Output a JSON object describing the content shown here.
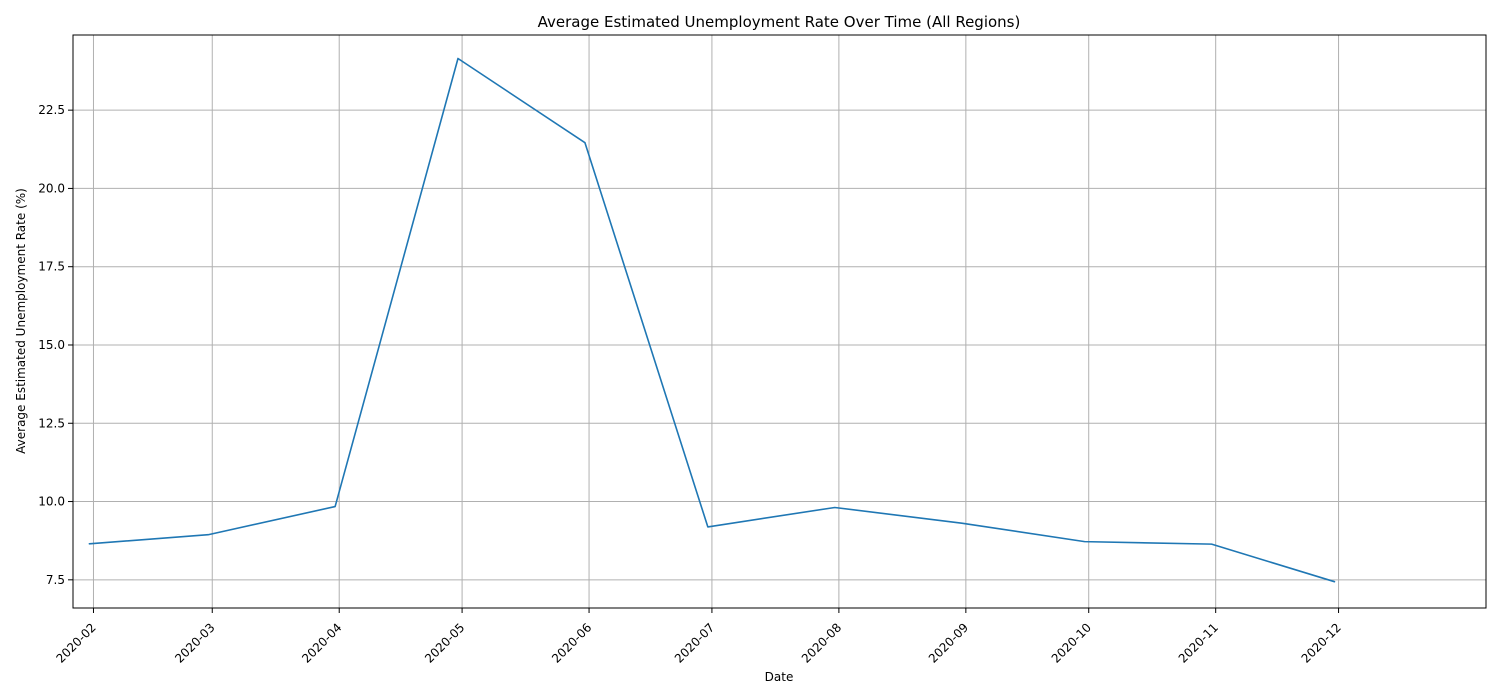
{
  "chart_data": {
    "type": "line",
    "title": "Average Estimated Unemployment Rate Over Time (All Regions)",
    "xlabel": "Date",
    "ylabel": "Average Estimated Unemployment Rate (%)",
    "x_tick_labels": [
      "2020-02",
      "2020-03",
      "2020-04",
      "2020-05",
      "2020-06",
      "2020-07",
      "2020-08",
      "2020-09",
      "2020-10",
      "2020-11",
      "2020-12"
    ],
    "y_ticks": [
      7.5,
      10.0,
      12.5,
      15.0,
      17.5,
      20.0,
      22.5
    ],
    "y_tick_labels": [
      "7.5",
      "10.0",
      "12.5",
      "15.0",
      "17.5",
      "20.0",
      "22.5"
    ],
    "ylim": [
      6.6,
      24.9
    ],
    "xlim": [
      "2020-01-27",
      "2021-01-06"
    ],
    "grid": true,
    "line_color": "#1f77b4",
    "series": [
      {
        "x": [
          "2020-01-31",
          "2020-02-29",
          "2020-03-31",
          "2020-04-30",
          "2020-05-31",
          "2020-06-30",
          "2020-07-31",
          "2020-08-31",
          "2020-09-30",
          "2020-10-31",
          "2020-11-30"
        ],
        "values": [
          8.65,
          8.94,
          9.84,
          24.15,
          21.46,
          9.19,
          9.81,
          9.31,
          8.72,
          8.64,
          7.44
        ]
      }
    ]
  }
}
